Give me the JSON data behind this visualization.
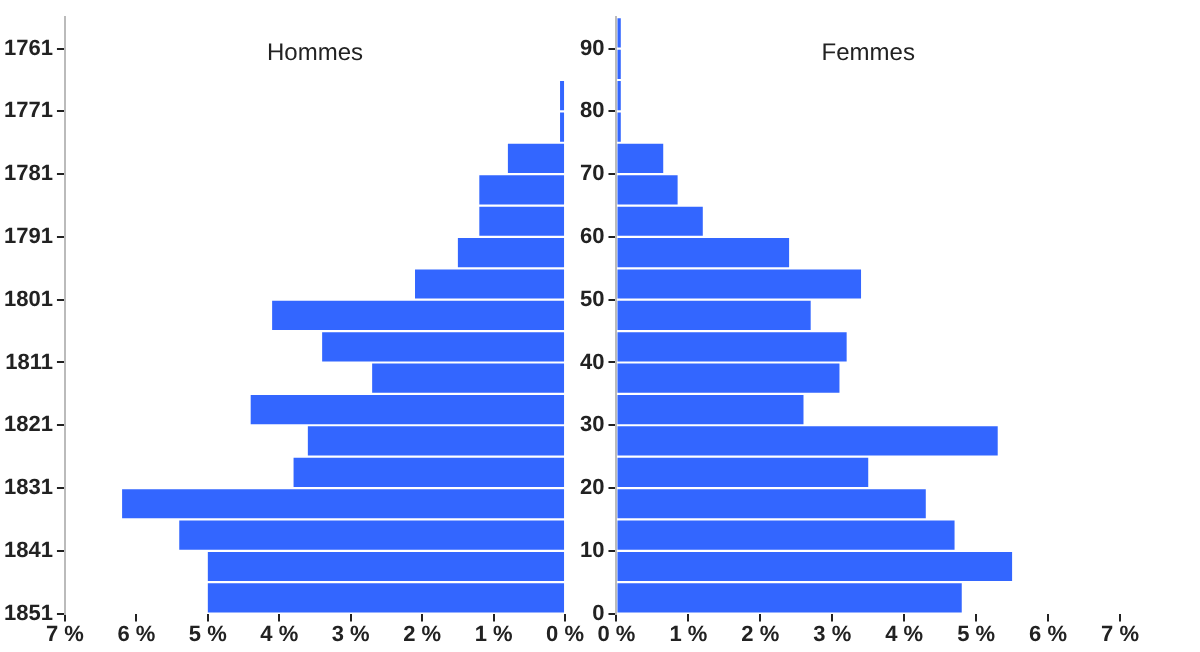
{
  "chart_data": [
    {
      "type": "histogram",
      "orientation": "horizontal",
      "title": "Hommes",
      "bins": [
        1851,
        1846,
        1841,
        1836,
        1831,
        1826,
        1821,
        1816,
        1811,
        1806,
        1801,
        1796,
        1791,
        1786,
        1781,
        1776,
        1771,
        1766,
        1761,
        1756
      ],
      "values": [
        5.0,
        5.0,
        5.4,
        6.2,
        3.8,
        3.6,
        4.4,
        2.7,
        3.4,
        4.1,
        2.1,
        1.5,
        1.2,
        1.2,
        0.8,
        0.07,
        0.07,
        0,
        0
      ],
      "color": "#3366ff",
      "xlim": [
        7,
        0
      ],
      "xticks": [
        {
          "value": 7,
          "label": "7 %"
        },
        {
          "value": 6,
          "label": "6 %"
        },
        {
          "value": 5,
          "label": "5 %"
        },
        {
          "value": 4,
          "label": "4 %"
        },
        {
          "value": 3,
          "label": "3 %"
        },
        {
          "value": 2,
          "label": "2 %"
        },
        {
          "value": 1,
          "label": "1 %"
        },
        {
          "value": 0,
          "label": "0 %"
        }
      ],
      "ylim": [
        1851,
        1756
      ],
      "yticks": [
        1851,
        1841,
        1831,
        1821,
        1811,
        1801,
        1791,
        1781,
        1771,
        1761
      ],
      "grid": false
    },
    {
      "type": "histogram",
      "orientation": "horizontal",
      "title": "Femmes",
      "bins": [
        0,
        5,
        10,
        15,
        20,
        25,
        30,
        35,
        40,
        45,
        50,
        55,
        60,
        65,
        70,
        75,
        80,
        85,
        90,
        95
      ],
      "values": [
        4.8,
        5.5,
        4.7,
        4.3,
        3.5,
        5.3,
        2.6,
        3.1,
        3.2,
        2.7,
        3.4,
        2.4,
        1.2,
        0.85,
        0.65,
        0.06,
        0.06,
        0.06,
        0.06
      ],
      "color": "#3366ff",
      "xlim": [
        0,
        7
      ],
      "xticks": [
        {
          "value": 0,
          "label": "0 %"
        },
        {
          "value": 1,
          "label": "1 %"
        },
        {
          "value": 2,
          "label": "2 %"
        },
        {
          "value": 3,
          "label": "3 %"
        },
        {
          "value": 4,
          "label": "4 %"
        },
        {
          "value": 5,
          "label": "5 %"
        },
        {
          "value": 6,
          "label": "6 %"
        },
        {
          "value": 7,
          "label": "7 %"
        }
      ],
      "ylim": [
        0,
        95
      ],
      "yticks": [
        0,
        10,
        20,
        30,
        40,
        50,
        60,
        70,
        80,
        90
      ],
      "grid": false
    }
  ]
}
